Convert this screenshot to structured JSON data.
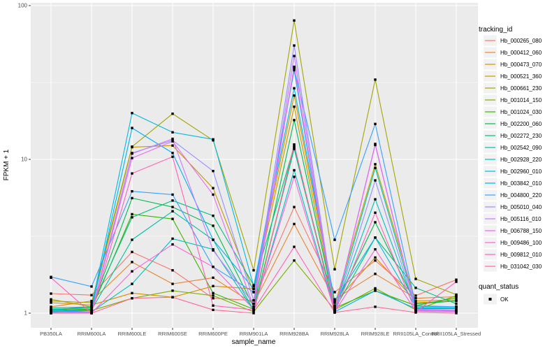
{
  "chart_data": {
    "type": "line",
    "title": "",
    "xlabel": "sample_name",
    "ylabel": "FPKM + 1",
    "y_scale": "log10",
    "ylim": [
      0.8,
      105
    ],
    "y_ticks": [
      1,
      10,
      100
    ],
    "y_tick_labels": [
      "1",
      "10",
      "100"
    ],
    "y_minor_ticks": [
      3.162,
      31.62
    ],
    "grid": true,
    "panel_bg": "#EBEBEB",
    "grid_color": "#FFFFFF",
    "tick_color": "#333333",
    "point": {
      "shape": "square",
      "color": "#000000"
    },
    "legend_position": "right",
    "legend": {
      "color_title": "tracking_id",
      "shape_title": "quant_status",
      "shape_items": [
        {
          "label": "OK"
        }
      ]
    },
    "categories": [
      "PB350LA",
      "RRIM600LA",
      "RRIM600LE",
      "RRIM600SE",
      "RRIM600PE",
      "RRIM901LA",
      "RRIM928BA",
      "RRIM928LA",
      "RRIM928LE",
      "RRII105LA_Control",
      "RRII105LA_Stressed"
    ],
    "series": [
      {
        "name": "Hb_000265_080",
        "color": "#F8766D",
        "values": [
          1.34,
          1.31,
          2.5,
          1.9,
          1.25,
          1.21,
          4.9,
          1.37,
          2.2,
          1.3,
          1.65
        ]
      },
      {
        "name": "Hb_000412_060",
        "color": "#EA8331",
        "values": [
          1.1,
          1.2,
          2.15,
          1.55,
          1.7,
          1.15,
          3.8,
          1.23,
          1.8,
          1.25,
          1.28
        ]
      },
      {
        "name": "Hb_000473_070",
        "color": "#D89000",
        "values": [
          1.17,
          1.13,
          1.35,
          1.27,
          1.5,
          1.44,
          26.0,
          1.17,
          2.3,
          1.2,
          1.22
        ]
      },
      {
        "name": "Hb_000521_360",
        "color": "#C09B00",
        "values": [
          1.23,
          1.1,
          12.0,
          12.3,
          6.5,
          1.37,
          22.0,
          1.12,
          9.3,
          1.17,
          1.2
        ]
      },
      {
        "name": "Hb_000661_230",
        "color": "#A3A500",
        "values": [
          1.2,
          1.17,
          12.1,
          19.8,
          13.3,
          1.9,
          80.0,
          1.93,
          33.0,
          1.67,
          1.32
        ]
      },
      {
        "name": "Hb_001014_150",
        "color": "#7CAE00",
        "values": [
          1.02,
          1.04,
          1.25,
          1.4,
          1.3,
          1.02,
          2.2,
          1.05,
          1.45,
          1.05,
          1.3
        ]
      },
      {
        "name": "Hb_001024_030",
        "color": "#39B600",
        "values": [
          1.05,
          1.06,
          4.4,
          4.1,
          1.35,
          1.06,
          12.0,
          1.08,
          1.4,
          1.12,
          1.26
        ]
      },
      {
        "name": "Hb_002200_060",
        "color": "#00BB4E",
        "values": [
          1.06,
          1.08,
          5.6,
          4.9,
          3.7,
          1.1,
          18.0,
          1.1,
          3.9,
          1.15,
          1.2
        ]
      },
      {
        "name": "Hb_002272_230",
        "color": "#00BF7D",
        "values": [
          1.08,
          1.1,
          4.2,
          5.4,
          4.3,
          1.52,
          12.2,
          1.06,
          3.1,
          1.46,
          1.15
        ]
      },
      {
        "name": "Hb_002542_090",
        "color": "#00C1A3",
        "values": [
          1.04,
          1.05,
          3.0,
          4.6,
          3.0,
          1.05,
          11.7,
          1.05,
          8.8,
          1.1,
          1.1
        ]
      },
      {
        "name": "Hb_002928_220",
        "color": "#00BFC4",
        "values": [
          1.03,
          1.02,
          1.55,
          3.05,
          2.6,
          1.04,
          8.5,
          1.04,
          5.5,
          1.08,
          1.08
        ]
      },
      {
        "name": "Hb_002960_010",
        "color": "#00BAE0",
        "values": [
          1.05,
          1.1,
          20.0,
          15.0,
          13.5,
          1.5,
          29.0,
          1.2,
          3.1,
          1.1,
          1.1
        ]
      },
      {
        "name": "Hb_003842_010",
        "color": "#00B0F6",
        "values": [
          1.02,
          1.05,
          16.0,
          11.0,
          3.0,
          1.44,
          38.0,
          1.02,
          1.4,
          1.07,
          1.07
        ]
      },
      {
        "name": "Hb_004800_220",
        "color": "#35A2FF",
        "values": [
          1.72,
          1.49,
          6.2,
          5.9,
          2.0,
          1.37,
          39.0,
          3.0,
          17.0,
          1.12,
          1.1
        ]
      },
      {
        "name": "Hb_005010_040",
        "color": "#9590FF",
        "values": [
          1.01,
          1.02,
          11.0,
          13.3,
          8.4,
          1.21,
          55.0,
          1.03,
          7.3,
          1.06,
          1.05
        ]
      },
      {
        "name": "Hb_005116_010",
        "color": "#C77CFF",
        "values": [
          1.01,
          1.01,
          10.9,
          13.6,
          2.56,
          1.15,
          47.0,
          1.03,
          12.6,
          1.05,
          1.04
        ]
      },
      {
        "name": "Hb_006788_150",
        "color": "#E76BF3",
        "values": [
          1.0,
          1.01,
          10.2,
          13.1,
          5.9,
          1.1,
          40.0,
          1.02,
          12.4,
          1.04,
          1.03
        ]
      },
      {
        "name": "Hb_009486_100",
        "color": "#FA62DB",
        "values": [
          1.0,
          1.0,
          1.87,
          2.8,
          2.0,
          1.06,
          7.7,
          1.02,
          2.6,
          1.03,
          1.02
        ]
      },
      {
        "name": "Hb_009812_010",
        "color": "#FF62BC",
        "values": [
          1.7,
          1.0,
          8.1,
          10.4,
          1.12,
          1.05,
          2.7,
          1.01,
          4.5,
          1.02,
          1.6
        ]
      },
      {
        "name": "Hb_031042_030",
        "color": "#FF6A98",
        "values": [
          1.0,
          1.0,
          1.25,
          1.27,
          1.05,
          1.0,
          12.5,
          1.01,
          1.1,
          1.01,
          1.0
        ]
      }
    ]
  }
}
